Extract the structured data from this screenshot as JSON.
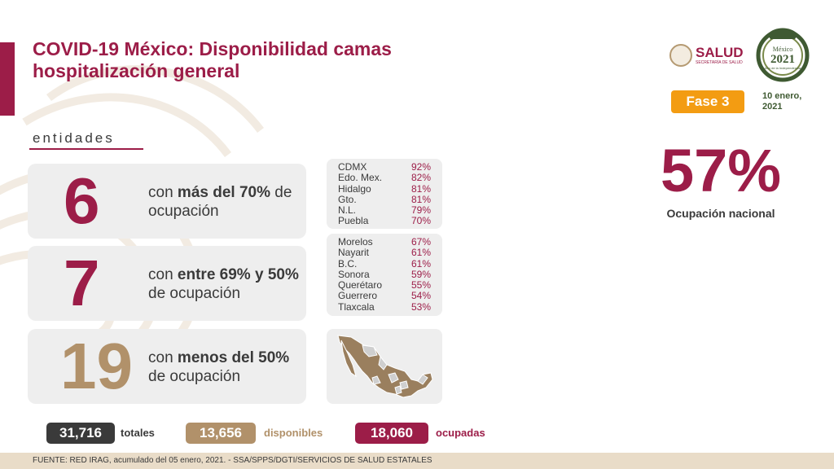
{
  "title_line1": "COVID-19 México: Disponibilidad camas",
  "title_line2": "hospitalización general",
  "logo": {
    "salud": "SALUD",
    "salud_sub": "SECRETARÍA DE SALUD",
    "year": "2021",
    "year_top": "México",
    "year_sub": "Año de la Independencia"
  },
  "phase": "Fase 3",
  "date_line1": "10 enero,",
  "date_line2": "2021",
  "section_label": "entidades",
  "groups": [
    {
      "count": "6",
      "text_pre": "con ",
      "text_bold": "más del 70%",
      "text_post": " de ocupación",
      "color": "#9c1d48"
    },
    {
      "count": "7",
      "text_pre": "con ",
      "text_bold": "entre 69% y 50%",
      "text_post": " de ocupación",
      "color": "#9c1d48"
    },
    {
      "count": "19",
      "text_pre": "con ",
      "text_bold": "menos del 50%",
      "text_post": " de ocupación",
      "color": "#b1916a"
    }
  ],
  "list_high": [
    {
      "name": "CDMX",
      "pct": "92%"
    },
    {
      "name": "Edo. Mex.",
      "pct": "82%"
    },
    {
      "name": "Hidalgo",
      "pct": "81%"
    },
    {
      "name": "Gto.",
      "pct": "81%"
    },
    {
      "name": "N.L.",
      "pct": "79%"
    },
    {
      "name": "Puebla",
      "pct": "70%"
    }
  ],
  "list_mid": [
    {
      "name": "Morelos",
      "pct": "67%"
    },
    {
      "name": "Nayarit",
      "pct": "61%"
    },
    {
      "name": "B.C.",
      "pct": "61%"
    },
    {
      "name": "Sonora",
      "pct": "59%"
    },
    {
      "name": "Querétaro",
      "pct": "55%"
    },
    {
      "name": "Guerrero",
      "pct": "54%"
    },
    {
      "name": "Tlaxcala",
      "pct": "53%"
    }
  ],
  "national_pct": "57%",
  "national_label": "Ocupación nacional",
  "stats": {
    "total_value": "31,716",
    "total_label": "totales",
    "available_value": "13,656",
    "available_label": "disponibles",
    "occupied_value": "18,060",
    "occupied_label": "ocupadas"
  },
  "colors": {
    "accent": "#9c1d48",
    "gold": "#b1916a",
    "dark": "#3a3a3a",
    "orange": "#f39c12"
  },
  "footer": "FUENTE: RED IRAG, acumulado del 05 enero, 2021.  -  SSA/SPPS/DGTI/SERVICIOS DE SALUD ESTATALES"
}
